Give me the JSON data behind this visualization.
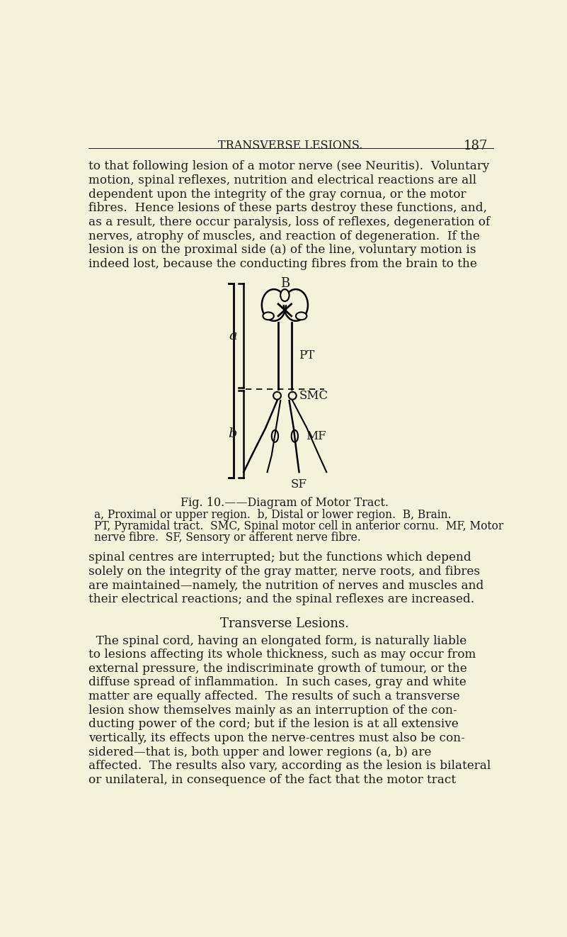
{
  "bg_color": "#f5f2dc",
  "text_color": "#1a1a1a",
  "header_text": "TRANSVERSE LESIONS.",
  "page_number": "187",
  "fig_caption": "Fig. 10.——Diagram of Motor Tract.",
  "fig_caption2a": "a, Proximal or upper region.  b, Distal or lower region.  B, Brain.",
  "fig_caption2b": "PT, Pyramidal tract.  SMC, Spinal motor cell in anterior cornu.  MF, Motor",
  "fig_caption2c": "nerve fibre.  SF, Sensory or afferent nerve fibre.",
  "section_title": "Transverse Lesions.",
  "lines_p1": [
    "to that following lesion of a motor nerve (see Neuritis).  Voluntary",
    "motion, spinal reflexes, nutrition and electrical reactions are all",
    "dependent upon the integrity of the gray cornua, or the motor",
    "fibres.  Hence lesions of these parts destroy these functions, and,",
    "as a result, there occur paralysis, loss of reflexes, degeneration of",
    "nerves, atrophy of muscles, and reaction of degeneration.  If the",
    "lesion is on the proximal side (a) of the line, voluntary motion is",
    "indeed lost, because the conducting fibres from the brain to the"
  ],
  "lines_p2": [
    "spinal centres are interrupted; but the functions which depend",
    "solely on the integrity of the gray matter, nerve roots, and fibres",
    "are maintained—namely, the nutrition of nerves and muscles and",
    "their electrical reactions; and the spinal reflexes are increased."
  ],
  "lines_p3": [
    "  The spinal cord, having an elongated form, is naturally liable",
    "to lesions affecting its whole thickness, such as may occur from",
    "external pressure, the indiscriminate growth of tumour, or the",
    "diffuse spread of inflammation.  In such cases, gray and white",
    "matter are equally affected.  The results of such a transverse",
    "lesion show themselves mainly as an interruption of the con-",
    "ducting power of the cord; but if the lesion is at all extensive",
    "vertically, its effects upon the nerve-centres must also be con-",
    "sidered—that is, both upper and lower regions (a, b) are",
    "affected.  The results also vary, according as the lesion is bilateral",
    "or unilateral, in consequence of the fact that the motor tract"
  ]
}
